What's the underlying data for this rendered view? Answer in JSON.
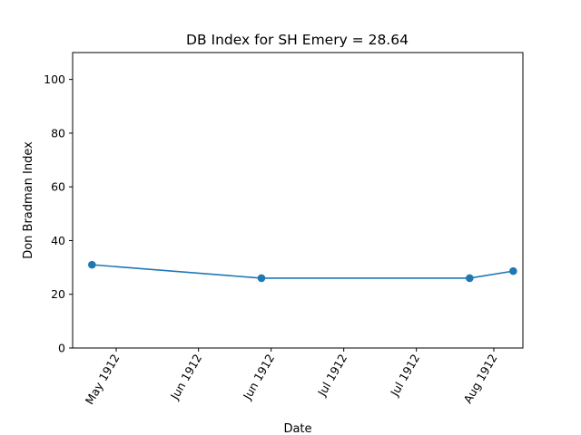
{
  "chart_data": {
    "type": "line",
    "title": "DB Index for SH Emery = 28.64",
    "xlabel": "Date",
    "ylabel": "Don Bradman Index",
    "ylim": [
      0,
      110
    ],
    "xlim": [
      "1912-05-06",
      "1912-08-07"
    ],
    "grid": false,
    "line_color": "#1f77b4",
    "x_ticks": [
      {
        "date": "1912-05-15",
        "label": "May 1912"
      },
      {
        "date": "1912-06-01",
        "label": "Jun 1912"
      },
      {
        "date": "1912-06-16",
        "label": "Jun 1912"
      },
      {
        "date": "1912-07-01",
        "label": "Jul 1912"
      },
      {
        "date": "1912-07-16",
        "label": "Jul 1912"
      },
      {
        "date": "1912-08-01",
        "label": "Aug 1912"
      }
    ],
    "y_ticks": [
      0,
      20,
      40,
      60,
      80,
      100
    ],
    "series": [
      {
        "points": [
          {
            "x": "1912-05-10",
            "y": 31.0
          },
          {
            "x": "1912-06-14",
            "y": 26.0
          },
          {
            "x": "1912-07-27",
            "y": 26.0
          },
          {
            "x": "1912-08-05",
            "y": 28.64
          }
        ]
      }
    ]
  }
}
